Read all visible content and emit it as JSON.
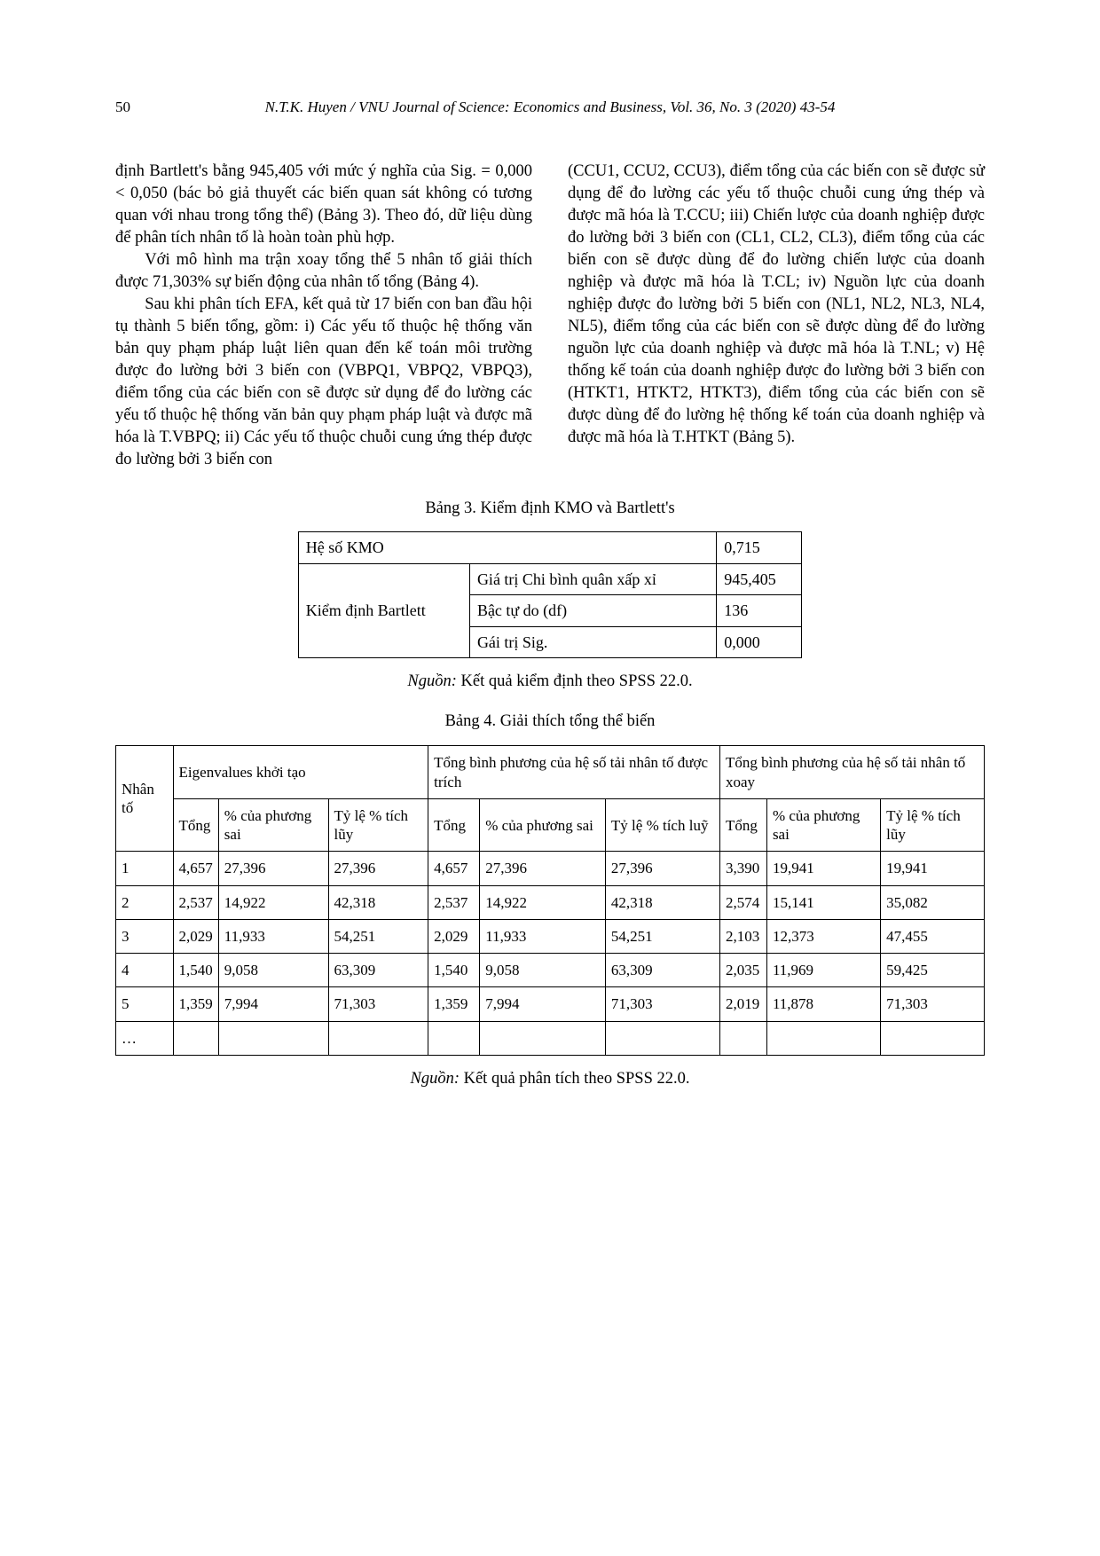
{
  "page_number": "50",
  "header_citation": "N.T.K. Huyen / VNU Journal of Science: Economics and Business, Vol. 36, No. 3 (2020) 43-54",
  "body": {
    "left_p1": "định Bartlett's bằng 945,405 với mức ý nghĩa của Sig. = 0,000 < 0,050 (bác bỏ giả thuyết các biến quan sát không có tương quan với nhau trong tổng thể) (Bảng 3). Theo đó, dữ liệu dùng để phân tích nhân tố là hoàn toàn phù hợp.",
    "left_p2": "Với mô hình ma trận xoay tổng thể 5 nhân tố giải thích được 71,303% sự biến động của nhân tố tổng (Bảng 4).",
    "left_p3": "Sau khi phân tích EFA, kết quả từ 17 biến con ban đầu hội tụ thành 5 biến tổng, gồm: i) Các yếu tố thuộc hệ thống văn bản quy phạm pháp luật liên quan đến kế toán môi trường được đo lường bởi 3 biến con (VBPQ1, VBPQ2, VBPQ3), điểm tổng của các biến con sẽ được sử dụng để đo lường các yếu tố thuộc hệ thống văn bản quy phạm pháp luật và được mã hóa là T.VBPQ; ii) Các yếu tố thuộc chuỗi cung ứng thép được đo lường bởi 3 biến con",
    "right_p1": "(CCU1, CCU2, CCU3), điểm tổng của các biến con sẽ được sử dụng để đo lường các yếu tố thuộc chuỗi cung ứng thép và được mã hóa là T.CCU; iii) Chiến lược của doanh nghiệp được đo lường bởi 3 biến con (CL1, CL2, CL3), điểm tổng của các biến con sẽ được dùng để đo lường chiến lược của doanh nghiệp và được mã hóa là T.CL; iv) Nguồn lực của doanh nghiệp được đo lường bởi 5 biến con (NL1, NL2, NL3, NL4, NL5), điểm tổng của các biến con sẽ được dùng để đo lường nguồn lực của doanh nghiệp và được mã hóa là T.NL; v) Hệ thống kế toán của doanh nghiệp được đo lường bởi 3 biến con (HTKT1, HTKT2, HTKT3), điểm tổng của các biến con sẽ được dùng để đo lường hệ thống kế toán của doanh nghiệp và được mã hóa là T.HTKT (Bảng 5)."
  },
  "table3": {
    "title": "Bảng 3. Kiểm định KMO và Bartlett's",
    "kmo_label": "Hệ số KMO",
    "kmo_value": "0,715",
    "bartlett_label": "Kiểm định Bartlett",
    "r1_label": "Giá trị Chi bình quân xấp xỉ",
    "r1_val": "945,405",
    "r2_label": "Bậc tự do (df)",
    "r2_val": "136",
    "r3_label": "Gái trị Sig.",
    "r3_val": "0,000",
    "note_prefix": "Nguồn: ",
    "note": "Kết quả kiểm định theo SPSS 22.0."
  },
  "table4": {
    "title": "Bảng 4. Giải thích tổng thể biến",
    "col_factor": "Nhân tố",
    "grp1": "Eigenvalues khởi tạo",
    "grp2": "Tổng bình phương của hệ số tải nhân tố được trích",
    "grp3": "Tổng bình phương của hệ số tải nhân tố xoay",
    "sub_tong": "Tổng",
    "sub_pct": "% của phương sai",
    "sub_cum": "Tỷ lệ % tích lũy",
    "sub_cum2": "Tỷ lệ % tích luỹ",
    "rows": [
      {
        "id": "1",
        "a": "4,657",
        "b": "27,396",
        "c": "27,396",
        "d": "4,657",
        "e": "27,396",
        "f": "27,396",
        "g": "3,390",
        "h": "19,941",
        "i": "19,941"
      },
      {
        "id": "2",
        "a": "2,537",
        "b": "14,922",
        "c": "42,318",
        "d": "2,537",
        "e": "14,922",
        "f": "42,318",
        "g": "2,574",
        "h": "15,141",
        "i": "35,082"
      },
      {
        "id": "3",
        "a": "2,029",
        "b": "11,933",
        "c": "54,251",
        "d": "2,029",
        "e": "11,933",
        "f": "54,251",
        "g": "2,103",
        "h": "12,373",
        "i": "47,455"
      },
      {
        "id": "4",
        "a": "1,540",
        "b": "9,058",
        "c": "63,309",
        "d": "1,540",
        "e": "9,058",
        "f": "63,309",
        "g": "2,035",
        "h": "11,969",
        "i": "59,425"
      },
      {
        "id": "5",
        "a": "1,359",
        "b": "7,994",
        "c": "71,303",
        "d": "1,359",
        "e": "7,994",
        "f": "71,303",
        "g": "2,019",
        "h": "11,878",
        "i": "71,303"
      }
    ],
    "ellipsis": "…",
    "note_prefix": "Nguồn: ",
    "note": "Kết quả phân tích theo SPSS 22.0."
  }
}
